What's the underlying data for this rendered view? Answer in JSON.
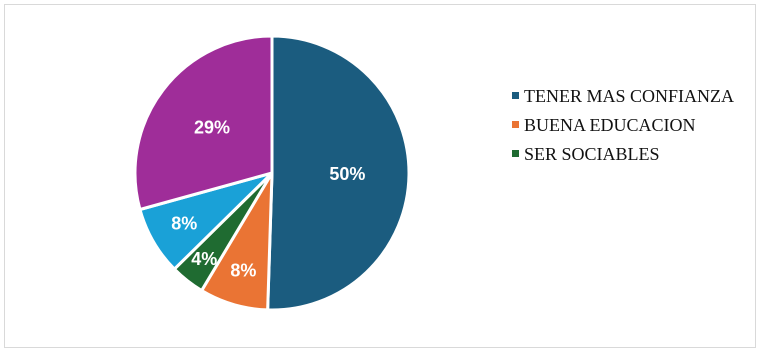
{
  "chart_data": {
    "type": "pie",
    "title": "",
    "slices": [
      {
        "label": "",
        "value": 50,
        "display": "50%",
        "color": "#1b5c7f"
      },
      {
        "label": "",
        "value": 8,
        "display": "8%",
        "color": "#ea7434"
      },
      {
        "label": "SER SOCIABLES",
        "value": 4,
        "display": "4%",
        "color": "#1f6b31"
      },
      {
        "label": "",
        "value": 8,
        "display": "8%",
        "color": "#1aa1d7"
      },
      {
        "label": "",
        "value": 29,
        "display": "29%",
        "color": "#9f2d99"
      }
    ],
    "legend": {
      "placement": "right",
      "entries": [
        {
          "label": "TENER MAS CONFIANZA",
          "color": "#1b5c7f"
        },
        {
          "label": "BUENA EDUCACION",
          "color": "#ea7434"
        },
        {
          "label": "SER SOCIABLES",
          "color": "#1f6b31"
        }
      ]
    }
  }
}
